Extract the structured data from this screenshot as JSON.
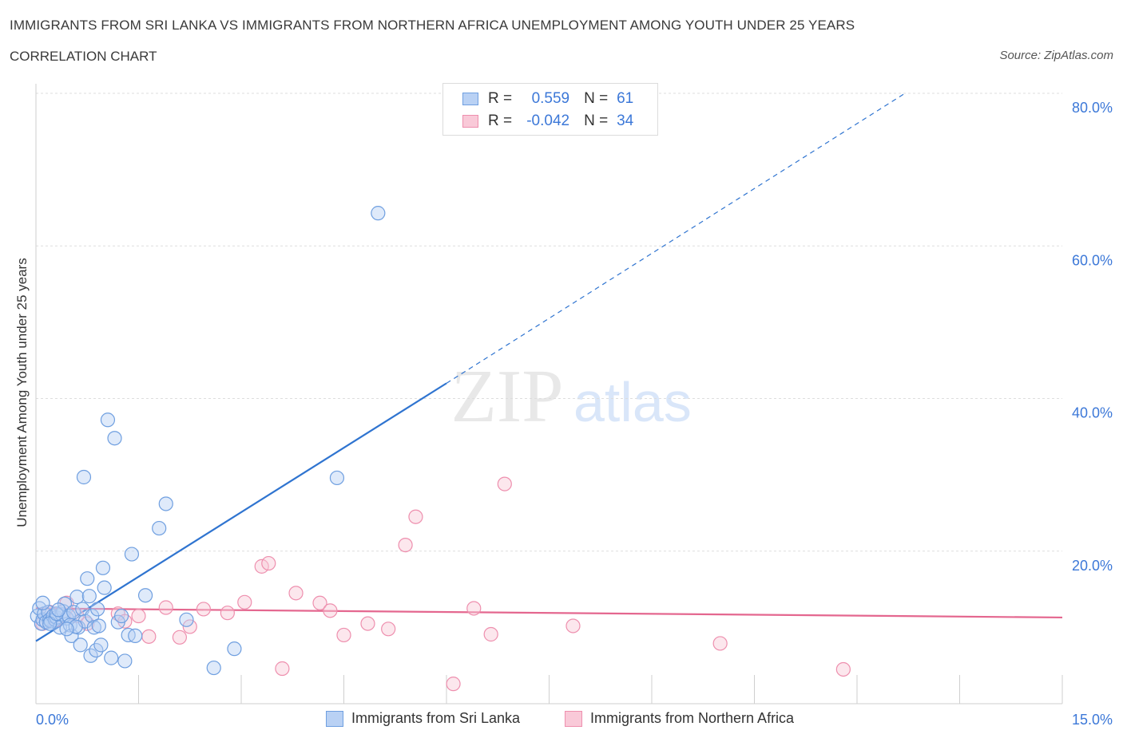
{
  "header": {
    "title": "IMMIGRANTS FROM SRI LANKA VS IMMIGRANTS FROM NORTHERN AFRICA UNEMPLOYMENT AMONG YOUTH UNDER 25 YEARS",
    "subtitle": "CORRELATION CHART",
    "source": "Source: ZipAtlas.com"
  },
  "watermark": {
    "zip": "ZIP",
    "atlas": "atlas"
  },
  "legend": {
    "r_label": "R =",
    "n_label": "N =",
    "series1": {
      "r": "0.559",
      "n": "61"
    },
    "series2": {
      "r": "-0.042",
      "n": "34"
    }
  },
  "colors": {
    "blue_fill": "#b9d1f4",
    "blue_stroke": "#6f9fe0",
    "blue_line": "#2f74d0",
    "pink_fill": "#f9c9d8",
    "pink_stroke": "#ee8fae",
    "pink_line": "#e4678f",
    "axis_text": "#3c78d8",
    "grid": "#dddddd"
  },
  "chart_data": {
    "type": "scatter",
    "title": "IMMIGRANTS FROM SRI LANKA VS IMMIGRANTS FROM NORTHERN AFRICA UNEMPLOYMENT AMONG YOUTH UNDER 25 YEARS",
    "xlabel": "",
    "ylabel": "Unemployment Among Youth under 25 years",
    "xlim": [
      0,
      15
    ],
    "ylim": [
      0,
      80
    ],
    "x_tick_labels": [
      "0.0%",
      "15.0%"
    ],
    "y_tick_labels": [
      "20.0%",
      "40.0%",
      "60.0%",
      "80.0%"
    ],
    "y_ticks": [
      20,
      40,
      60,
      80
    ],
    "grid": "horizontal dashed",
    "legend_position": "top-center",
    "series": [
      {
        "name": "Immigrants from Sri Lanka",
        "color": "#6f9fe0",
        "points": [
          [
            0.02,
            11.5
          ],
          [
            0.05,
            12.5
          ],
          [
            0.08,
            10.5
          ],
          [
            0.1,
            11.0
          ],
          [
            0.12,
            11.8
          ],
          [
            0.15,
            10.7
          ],
          [
            0.18,
            12.0
          ],
          [
            0.2,
            11.0
          ],
          [
            0.22,
            10.8
          ],
          [
            0.25,
            11.5
          ],
          [
            0.28,
            11.0
          ],
          [
            0.3,
            11.3
          ],
          [
            0.35,
            10.0
          ],
          [
            0.38,
            11.7
          ],
          [
            0.4,
            12.1
          ],
          [
            0.42,
            13.1
          ],
          [
            0.45,
            11.2
          ],
          [
            0.48,
            11.5
          ],
          [
            0.5,
            10.3
          ],
          [
            0.52,
            8.9
          ],
          [
            0.55,
            12.0
          ],
          [
            0.6,
            14.0
          ],
          [
            0.62,
            10.0
          ],
          [
            0.65,
            7.7
          ],
          [
            0.68,
            12.4
          ],
          [
            0.72,
            10.8
          ],
          [
            0.75,
            16.4
          ],
          [
            0.78,
            14.1
          ],
          [
            0.8,
            6.3
          ],
          [
            0.82,
            11.5
          ],
          [
            0.85,
            10.0
          ],
          [
            0.88,
            7.0
          ],
          [
            0.9,
            12.4
          ],
          [
            0.92,
            10.2
          ],
          [
            0.95,
            7.7
          ],
          [
            0.98,
            17.8
          ],
          [
            1.0,
            15.2
          ],
          [
            1.05,
            37.2
          ],
          [
            1.1,
            6.0
          ],
          [
            1.15,
            34.8
          ],
          [
            1.2,
            10.7
          ],
          [
            1.25,
            11.5
          ],
          [
            1.3,
            5.6
          ],
          [
            1.35,
            9.0
          ],
          [
            1.4,
            19.6
          ],
          [
            1.45,
            8.9
          ],
          [
            1.6,
            14.2
          ],
          [
            1.8,
            23.0
          ],
          [
            1.9,
            26.2
          ],
          [
            2.2,
            11.0
          ],
          [
            2.6,
            4.7
          ],
          [
            2.9,
            7.2
          ],
          [
            4.4,
            29.6
          ],
          [
            5.0,
            64.3
          ],
          [
            0.1,
            13.2
          ],
          [
            0.2,
            10.5
          ],
          [
            0.3,
            11.8
          ],
          [
            0.33,
            12.3
          ],
          [
            0.7,
            29.7
          ],
          [
            0.58,
            10.1
          ],
          [
            0.45,
            9.8
          ]
        ],
        "trend": {
          "x0": 0,
          "y0": 8.2,
          "x1": 6.0,
          "y1": 42.0,
          "dashed_to_x": 12.7,
          "dashed_to_y": 80.0
        }
      },
      {
        "name": "Immigrants from Northern Africa",
        "color": "#ee8fae",
        "points": [
          [
            0.1,
            10.5
          ],
          [
            0.2,
            12.0
          ],
          [
            0.3,
            11.0
          ],
          [
            0.45,
            13.2
          ],
          [
            0.6,
            11.5
          ],
          [
            0.75,
            10.5
          ],
          [
            1.2,
            11.8
          ],
          [
            1.3,
            10.8
          ],
          [
            1.5,
            11.5
          ],
          [
            1.65,
            8.8
          ],
          [
            1.9,
            12.6
          ],
          [
            2.1,
            8.7
          ],
          [
            2.25,
            10.1
          ],
          [
            2.45,
            12.4
          ],
          [
            2.8,
            11.9
          ],
          [
            3.05,
            13.3
          ],
          [
            3.3,
            18.0
          ],
          [
            3.4,
            18.4
          ],
          [
            3.6,
            4.6
          ],
          [
            3.8,
            14.5
          ],
          [
            4.15,
            13.2
          ],
          [
            4.3,
            12.2
          ],
          [
            4.5,
            9.0
          ],
          [
            4.85,
            10.5
          ],
          [
            5.15,
            9.8
          ],
          [
            5.4,
            20.8
          ],
          [
            5.55,
            24.5
          ],
          [
            6.1,
            2.6
          ],
          [
            6.4,
            12.5
          ],
          [
            6.65,
            9.1
          ],
          [
            6.85,
            28.8
          ],
          [
            7.85,
            10.2
          ],
          [
            10.0,
            7.9
          ],
          [
            11.8,
            4.5
          ]
        ],
        "trend": {
          "x0": 0,
          "y0": 12.5,
          "x1": 15,
          "y1": 11.3
        }
      }
    ]
  },
  "bottom_legend": {
    "item1": "Immigrants from Sri Lanka",
    "item2": "Immigrants from Northern Africa"
  }
}
